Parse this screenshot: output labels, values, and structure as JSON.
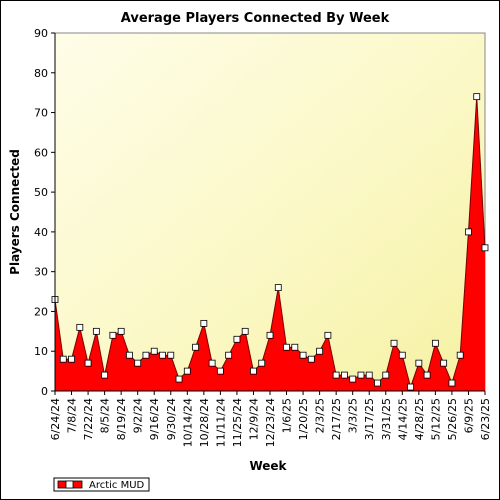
{
  "chart_data": {
    "type": "area",
    "title": "Average Players Connected By Week",
    "xlabel": "Week",
    "ylabel": "Players Connected",
    "ylim": [
      0,
      90
    ],
    "yticks": [
      0,
      10,
      20,
      30,
      40,
      50,
      60,
      70,
      80,
      90
    ],
    "xtick_labels": [
      "6/24/24",
      "7/8/24",
      "7/22/24",
      "8/5/24",
      "8/19/24",
      "9/2/24",
      "9/16/24",
      "9/30/24",
      "10/14/24",
      "10/28/24",
      "11/11/24",
      "11/25/24",
      "12/9/24",
      "12/23/24",
      "1/6/25",
      "1/20/25",
      "2/3/25",
      "2/17/25",
      "3/3/25",
      "3/17/25",
      "3/31/25",
      "4/14/25",
      "4/28/25",
      "5/12/25",
      "5/26/25",
      "6/9/25",
      "6/23/25"
    ],
    "grid": false,
    "legend_position": "bottom-left",
    "series": [
      {
        "name": "Arctic MUD",
        "color": "#ff0000",
        "values": [
          23,
          8,
          8,
          16,
          7,
          15,
          4,
          14,
          15,
          9,
          7,
          9,
          10,
          9,
          9,
          3,
          5,
          11,
          17,
          7,
          5,
          9,
          13,
          15,
          5,
          7,
          14,
          26,
          11,
          11,
          9,
          8,
          10,
          14,
          4,
          4,
          3,
          4,
          4,
          2,
          4,
          12,
          9,
          1,
          7,
          4,
          12,
          7,
          2,
          9,
          40,
          74,
          36
        ]
      }
    ]
  }
}
